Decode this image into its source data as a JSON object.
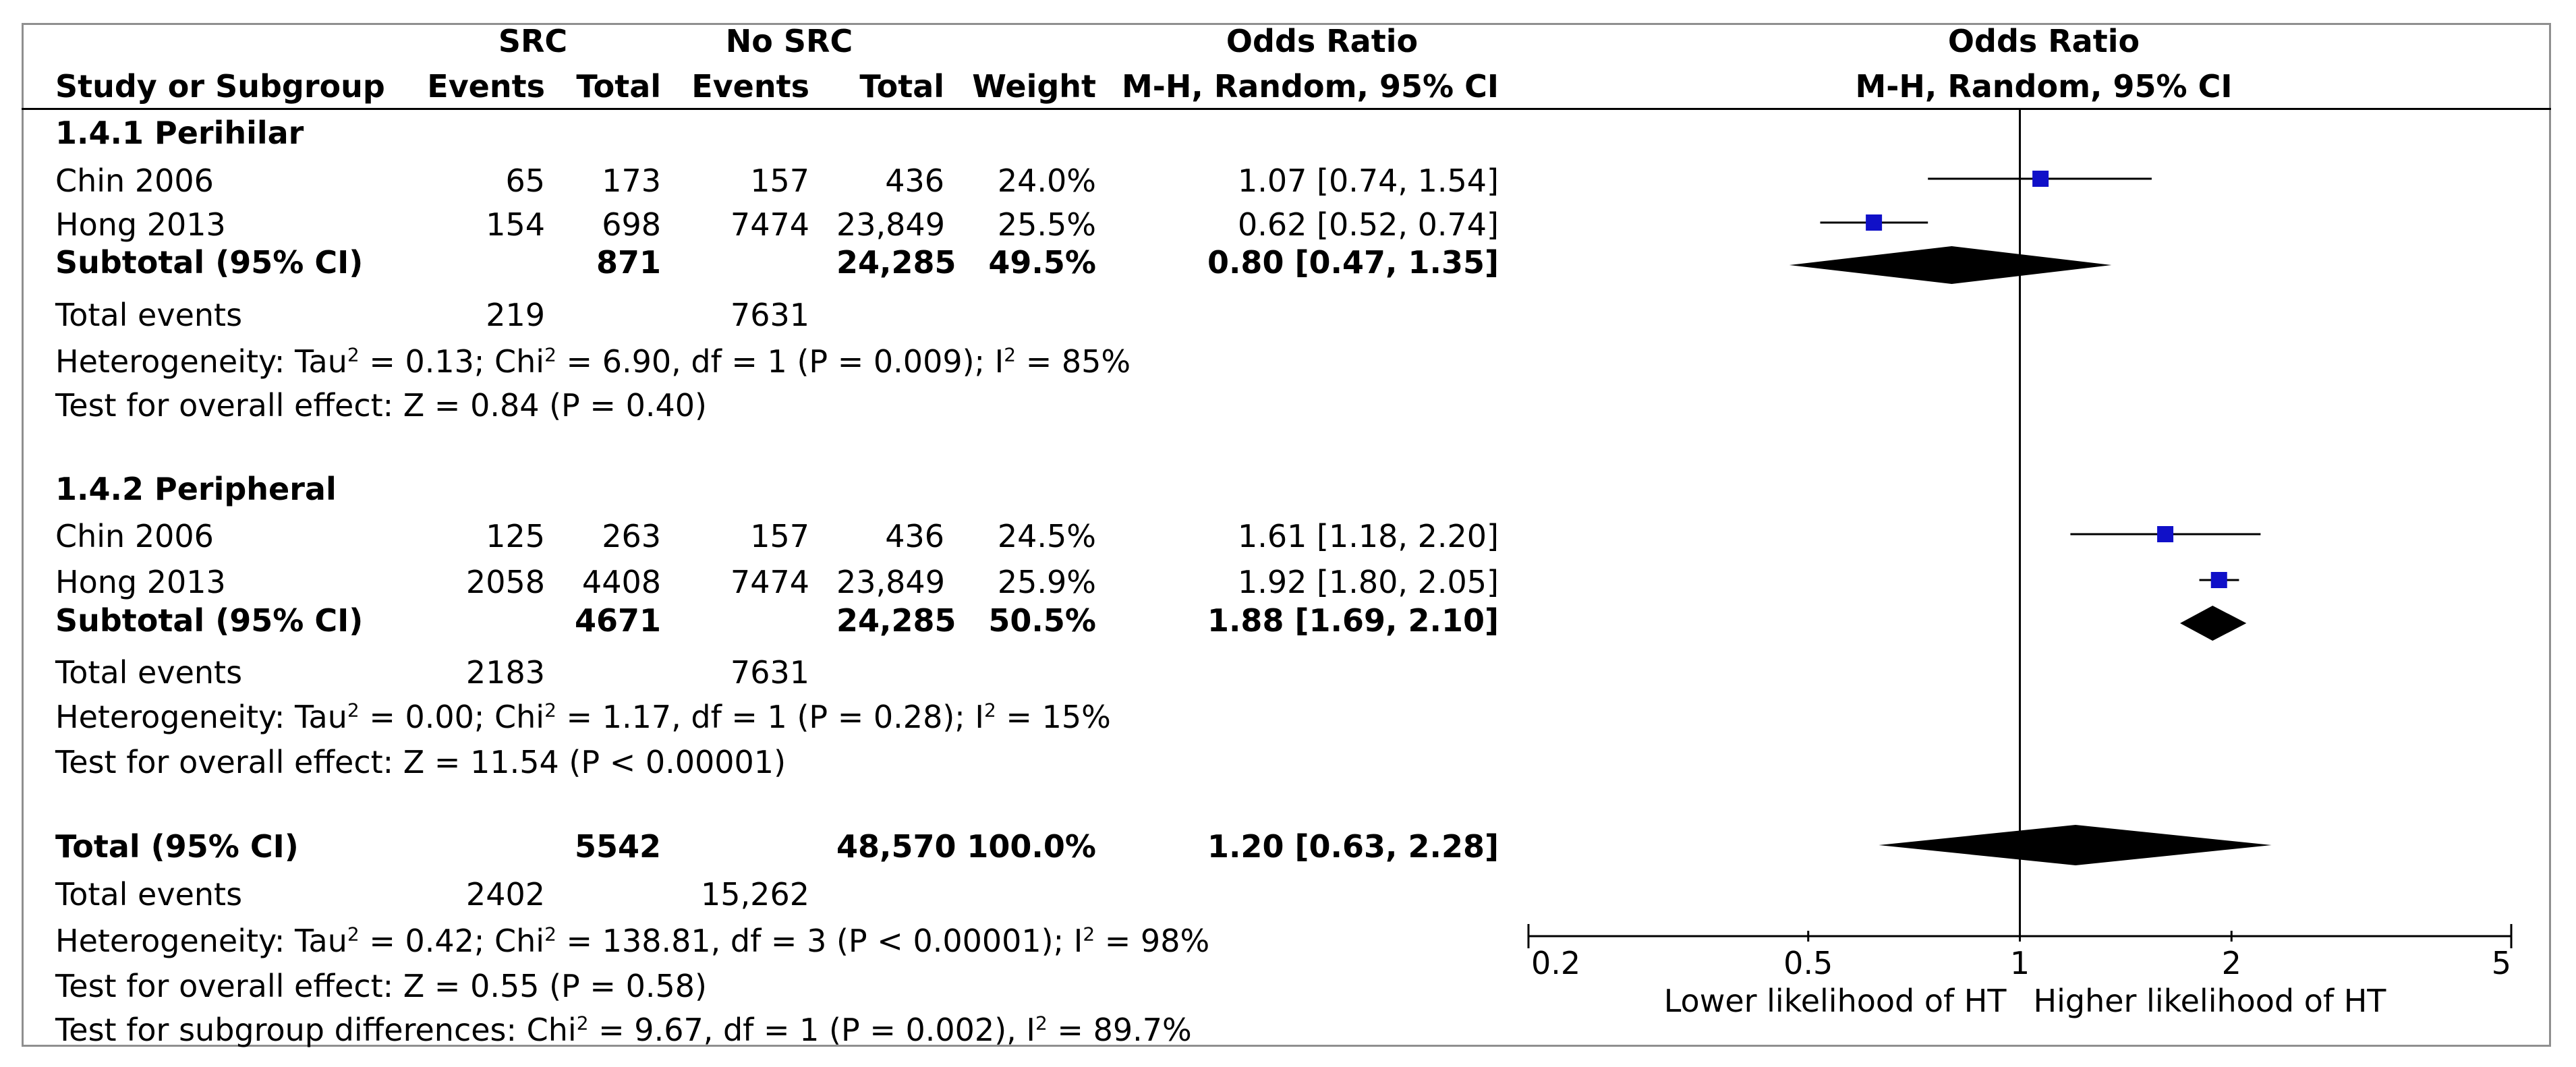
{
  "header": {
    "src": "SRC",
    "no_src": "No SRC",
    "odds_ratio": "Odds Ratio",
    "study_col": "Study or Subgroup",
    "events": "Events",
    "total": "Total",
    "events2": "Events",
    "total2": "Total",
    "weight": "Weight",
    "method": "M-H, Random, 95% CI",
    "plot_title": "Odds Ratio",
    "plot_method": "M-H, Random, 95% CI"
  },
  "groups": [
    {
      "title": "1.4.1 Perihilar",
      "studies": [
        {
          "name": "Chin 2006",
          "src_events": "65",
          "src_total": "173",
          "nosrc_events": "157",
          "nosrc_total": "436",
          "weight": "24.0%",
          "ci": "1.07 [0.74, 1.54]"
        },
        {
          "name": "Hong 2013",
          "src_events": "154",
          "src_total": "698",
          "nosrc_events": "7474",
          "nosrc_total": "23,849",
          "weight": "25.5%",
          "ci": "0.62 [0.52, 0.74]"
        }
      ],
      "subtotal": {
        "label": "Subtotal (95% CI)",
        "src_total": "871",
        "nosrc_total": "24,285",
        "weight": "49.5%",
        "ci": "0.80 [0.47, 1.35]"
      },
      "total_events": {
        "label": "Total events",
        "src": "219",
        "nosrc": "7631"
      },
      "het": {
        "pre": "Heterogeneity: Tau",
        "sup1": "2",
        "mid": " = 0.13; Chi",
        "sup2": "2",
        "mid2": " = 6.90, df = 1 (P = 0.009); I",
        "sup3": "2",
        "post": " = 85%"
      },
      "overall": "Test for overall effect: Z = 0.84 (P = 0.40)"
    },
    {
      "title": "1.4.2 Peripheral",
      "studies": [
        {
          "name": "Chin 2006",
          "src_events": "125",
          "src_total": "263",
          "nosrc_events": "157",
          "nosrc_total": "436",
          "weight": "24.5%",
          "ci": "1.61 [1.18, 2.20]"
        },
        {
          "name": "Hong 2013",
          "src_events": "2058",
          "src_total": "4408",
          "nosrc_events": "7474",
          "nosrc_total": "23,849",
          "weight": "25.9%",
          "ci": "1.92 [1.80, 2.05]"
        }
      ],
      "subtotal": {
        "label": "Subtotal (95% CI)",
        "src_total": "4671",
        "nosrc_total": "24,285",
        "weight": "50.5%",
        "ci": "1.88 [1.69, 2.10]"
      },
      "total_events": {
        "label": "Total events",
        "src": "2183",
        "nosrc": "7631"
      },
      "het": {
        "pre": "Heterogeneity: Tau",
        "sup1": "2",
        "mid": " = 0.00; Chi",
        "sup2": "2",
        "mid2": " = 1.17, df = 1 (P = 0.28); I",
        "sup3": "2",
        "post": " = 15%"
      },
      "overall": "Test for overall effect: Z = 11.54 (P < 0.00001)"
    }
  ],
  "total": {
    "label": "Total (95% CI)",
    "src_total": "5542",
    "nosrc_total": "48,570",
    "weight": "100.0%",
    "ci": "1.20 [0.63, 2.28]",
    "events_label": "Total events",
    "events_src": "2402",
    "events_nosrc": "15,262",
    "het": {
      "pre": "Heterogeneity: Tau",
      "sup1": "2",
      "mid": " = 0.42; Chi",
      "sup2": "2",
      "mid2": " = 138.81, df = 3 (P < 0.00001); I",
      "sup3": "2",
      "post": " = 98%"
    },
    "overall": "Test for overall effect: Z = 0.55 (P = 0.58)",
    "subgroup": {
      "pre": "Test for subgroup differences: Chi",
      "sup1": "2",
      "mid": " = 9.67, df = 1 (P = 0.002), I",
      "sup2": "2",
      "post": " = 89.7%"
    }
  },
  "chart_data": {
    "type": "forest",
    "title": "Odds Ratio",
    "subtitle": "M-H, Random, 95% CI",
    "x_scale": "log",
    "xlim": [
      0.2,
      5
    ],
    "ticks": [
      0.2,
      0.5,
      1,
      2,
      5
    ],
    "tick_labels": [
      "0.2",
      "0.5",
      "1",
      "2",
      "5"
    ],
    "reference_line": 1,
    "xlabel_left": "Lower likelihood of HT",
    "xlabel_right": "Higher likelihood of HT",
    "studies": [
      {
        "label": "Chin 2006 (Perihilar)",
        "or": 1.07,
        "lo": 0.74,
        "hi": 1.54,
        "weight": 24.0
      },
      {
        "label": "Hong 2013 (Perihilar)",
        "or": 0.62,
        "lo": 0.52,
        "hi": 0.74,
        "weight": 25.5
      },
      {
        "label": "Chin 2006 (Peripheral)",
        "or": 1.61,
        "lo": 1.18,
        "hi": 2.2,
        "weight": 24.5
      },
      {
        "label": "Hong 2013 (Peripheral)",
        "or": 1.92,
        "lo": 1.8,
        "hi": 2.05,
        "weight": 25.9
      }
    ],
    "diamonds": [
      {
        "label": "Subtotal Perihilar",
        "or": 0.8,
        "lo": 0.47,
        "hi": 1.35
      },
      {
        "label": "Subtotal Peripheral",
        "or": 1.88,
        "lo": 1.69,
        "hi": 2.1
      },
      {
        "label": "Total",
        "or": 1.2,
        "lo": 0.63,
        "hi": 2.28
      }
    ],
    "colors": {
      "marker": "#1010c8",
      "line": "#000000"
    }
  }
}
